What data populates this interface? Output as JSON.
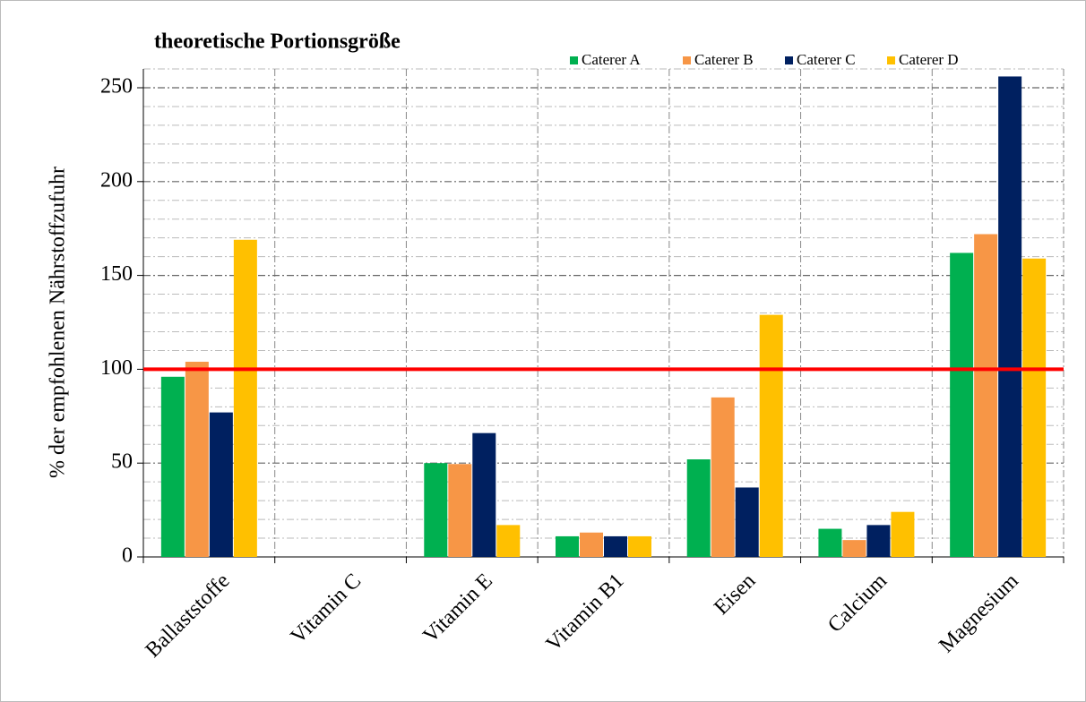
{
  "chart_data": {
    "type": "bar",
    "title": "theoretische Portionsgröße",
    "ylabel": "% der empfohlenen Nährstoffzufuhr",
    "categories": [
      "Ballaststoffe",
      "Vitamin C",
      "Vitamin E",
      "Vitamin B1",
      "Eisen",
      "Calcium",
      "Magnesium"
    ],
    "series": [
      {
        "name": "Caterer A",
        "color": "#00b050",
        "values": [
          96,
          0,
          50,
          11,
          52,
          15,
          162
        ]
      },
      {
        "name": "Caterer B",
        "color": "#f79646",
        "values": [
          104,
          0,
          49.5,
          13,
          85,
          9,
          172
        ]
      },
      {
        "name": "Caterer C",
        "color": "#002060",
        "values": [
          77,
          0,
          66,
          11,
          37,
          17,
          256
        ]
      },
      {
        "name": "Caterer D",
        "color": "#ffc000",
        "values": [
          169,
          0,
          17,
          11,
          129,
          24,
          159
        ]
      }
    ],
    "ylim": [
      0,
      260
    ],
    "yticks": [
      0,
      50,
      100,
      150,
      200,
      250
    ],
    "minor_yticks": [
      10,
      20,
      30,
      40,
      60,
      70,
      80,
      90,
      110,
      120,
      130,
      140,
      160,
      170,
      180,
      190,
      210,
      220,
      230,
      240,
      260
    ],
    "reference_line": {
      "value": 100,
      "color": "#ff0000"
    },
    "grid": true,
    "legend": "top"
  }
}
